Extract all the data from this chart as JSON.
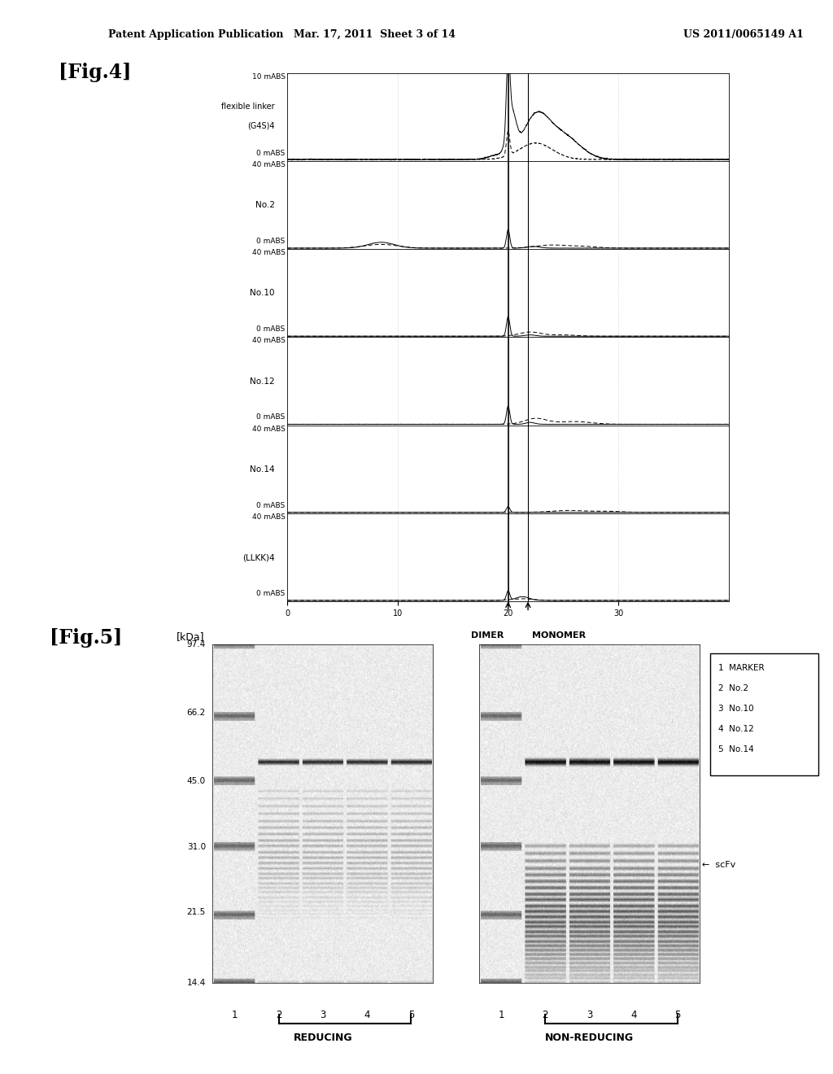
{
  "page_header_left": "Patent Application Publication",
  "page_header_mid": "Mar. 17, 2011  Sheet 3 of 14",
  "page_header_right": "US 2011/0065149 A1",
  "fig4_label": "[Fig.4]",
  "fig5_label": "[Fig.5]",
  "background_color": "#ffffff",
  "text_color": "#000000",
  "panel_labels": [
    "flexible linker\n(G4S)4",
    "No.2",
    "No.10",
    "No.12",
    "No.14",
    "(LLKK)4"
  ],
  "dimer_label": "DIMER",
  "monomer_label": "MONOMER",
  "fig5_kda_label": "[kDa]",
  "fig5_kda_values": [
    97.4,
    66.2,
    45.0,
    31.0,
    21.5,
    14.4
  ],
  "fig5_reducing_label": "REDUCING",
  "fig5_non_reducing_label": "NON-REDUCING",
  "fig5_legend": [
    "1  MARKER",
    "2  No.2",
    "3  No.10",
    "4  No.12",
    "5  No.14"
  ],
  "fig5_scfv_label": "←  scFv"
}
